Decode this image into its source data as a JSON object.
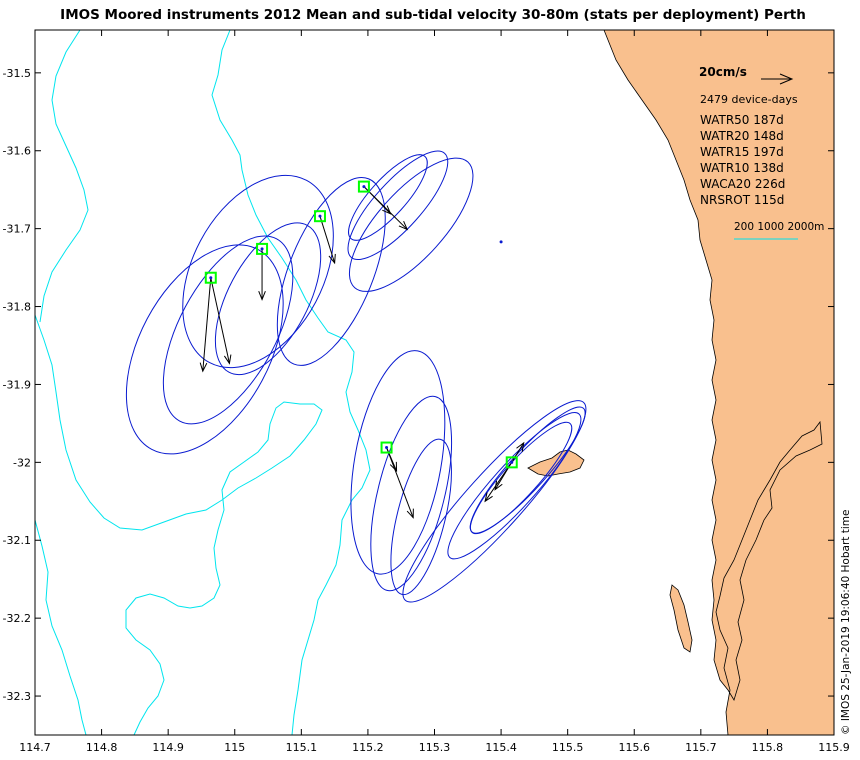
{
  "chart_data": {
    "type": "map-vector",
    "title": "IMOS Moored instruments 2012 Mean and sub-tidal velocity 30-80m (stats per deployment) Perth",
    "xlabel": "",
    "ylabel": "",
    "xlim": [
      114.7,
      115.9
    ],
    "ylim": [
      -32.35,
      -31.445
    ],
    "x_ticks": [
      "114.7",
      "114.8",
      "114.9",
      "115",
      "115.1",
      "115.2",
      "115.3",
      "115.4",
      "115.5",
      "115.6",
      "115.7",
      "115.8",
      "115.9"
    ],
    "y_ticks": [
      "-31.5",
      "-31.6",
      "-31.7",
      "-31.8",
      "-31.9",
      "-32",
      "-32.1",
      "-32.2",
      "-32.3"
    ],
    "grid": false,
    "scale_arrow": {
      "label": "20cm/s",
      "speed_cm_s": 20
    },
    "device_days": "2479 device-days",
    "deployments": [
      "WATR50 187d",
      "WATR20 148d",
      "WATR15 197d",
      "WATR10 138d",
      "WACA20 226d",
      "NRSROT 115d"
    ],
    "isobath_legend": "200 1000 2000m",
    "timestamp": "© IMOS 25-Jan-2019 19:06:40 Hobart time",
    "colors": {
      "land": "#f9c08e",
      "isobath": "#00e5ee",
      "ellipse": "#0a1bd0",
      "station": "#00ff00",
      "arrow": "#000000"
    },
    "stations": [
      {
        "name": "WATR50",
        "lon": 114.964,
        "lat": -31.763,
        "ellipses": [
          {
            "cx": 114.955,
            "cy": -31.855,
            "a": 0.17,
            "b": 0.098,
            "deg": -62
          },
          {
            "cx": 114.99,
            "cy": -31.83,
            "a": 0.155,
            "b": 0.073,
            "deg": -62
          }
        ],
        "arrows": [
          {
            "dx": -0.012,
            "dy": -0.12
          },
          {
            "dx": 0.028,
            "dy": -0.11
          }
        ]
      },
      {
        "name": "WATR20",
        "lon": 115.041,
        "lat": -31.726,
        "ellipses": [
          {
            "cx": 115.035,
            "cy": -31.755,
            "a": 0.155,
            "b": 0.098,
            "deg": -62
          },
          {
            "cx": 115.05,
            "cy": -31.79,
            "a": 0.125,
            "b": 0.06,
            "deg": -62
          }
        ],
        "arrows": [
          {
            "dx": 0.0,
            "dy": -0.065
          }
        ]
      },
      {
        "name": "WATR15",
        "lon": 115.128,
        "lat": -31.684,
        "ellipses": [
          {
            "cx": 115.145,
            "cy": -31.755,
            "a": 0.15,
            "b": 0.063,
            "deg": -68
          }
        ],
        "arrows": [
          {
            "dx": 0.022,
            "dy": -0.06
          }
        ]
      },
      {
        "name": "WATR10",
        "lon": 115.194,
        "lat": -31.646,
        "ellipses": [
          {
            "cx": 115.265,
            "cy": -31.695,
            "a": 0.127,
            "b": 0.05,
            "deg": -48
          },
          {
            "cx": 115.245,
            "cy": -31.67,
            "a": 0.105,
            "b": 0.035,
            "deg": -48
          },
          {
            "cx": 115.23,
            "cy": -31.66,
            "a": 0.083,
            "b": 0.027,
            "deg": -48
          }
        ],
        "arrows": [
          {
            "dx": 0.04,
            "dy": -0.035
          },
          {
            "dx": 0.065,
            "dy": -0.055
          }
        ]
      },
      {
        "name": "WACA20",
        "lon": 115.228,
        "lat": -31.981,
        "ellipses": [
          {
            "cx": 115.245,
            "cy": -32.0,
            "a": 0.17,
            "b": 0.065,
            "deg": -80
          },
          {
            "cx": 115.265,
            "cy": -32.04,
            "a": 0.15,
            "b": 0.05,
            "deg": -76
          },
          {
            "cx": 115.28,
            "cy": -32.07,
            "a": 0.12,
            "b": 0.036,
            "deg": -76
          }
        ],
        "arrows": [
          {
            "dx": 0.015,
            "dy": -0.03
          },
          {
            "dx": 0.04,
            "dy": -0.09
          }
        ]
      },
      {
        "name": "NRSROT",
        "lon": 115.416,
        "lat": -32.0,
        "ellipses": [
          {
            "cx": 115.39,
            "cy": -32.05,
            "a": 0.2,
            "b": 0.042,
            "deg": -48
          },
          {
            "cx": 115.42,
            "cy": -32.03,
            "a": 0.145,
            "b": 0.032,
            "deg": -48
          },
          {
            "cx": 115.44,
            "cy": -32.01,
            "a": 0.125,
            "b": 0.028,
            "deg": -48
          },
          {
            "cx": 115.43,
            "cy": -32.02,
            "a": 0.11,
            "b": 0.026,
            "deg": -48
          }
        ],
        "arrows": [
          {
            "dx": -0.04,
            "dy": -0.05
          },
          {
            "dx": -0.025,
            "dy": -0.035
          },
          {
            "dx": 0.018,
            "dy": 0.025
          }
        ]
      }
    ]
  }
}
